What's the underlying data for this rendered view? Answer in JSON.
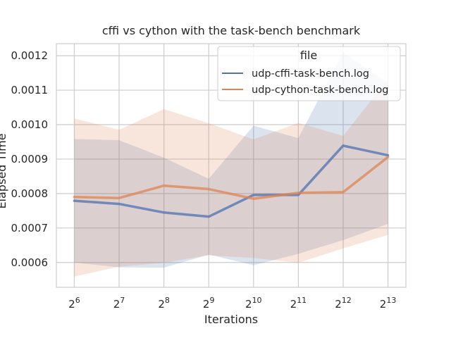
{
  "chart_data": {
    "type": "line",
    "title": "cffi vs cython with the task-bench benchmark",
    "xlabel": "Iterations",
    "ylabel": "Elapsed Time",
    "x_scale": "log2",
    "x": [
      64,
      128,
      256,
      512,
      1024,
      2048,
      4096,
      8192
    ],
    "x_tick_labels": [
      {
        "base": "2",
        "exp": "6"
      },
      {
        "base": "2",
        "exp": "7"
      },
      {
        "base": "2",
        "exp": "8"
      },
      {
        "base": "2",
        "exp": "9"
      },
      {
        "base": "2",
        "exp": "10"
      },
      {
        "base": "2",
        "exp": "11"
      },
      {
        "base": "2",
        "exp": "12"
      },
      {
        "base": "2",
        "exp": "13"
      }
    ],
    "y_ticks": [
      "0.0006",
      "0.0007",
      "0.0008",
      "0.0009",
      "0.0010",
      "0.0011",
      "0.0012"
    ],
    "ylim": [
      0.000528,
      0.001235
    ],
    "grid": true,
    "legend": {
      "title": "file",
      "placement": "top-right"
    },
    "series": [
      {
        "name": "udp-cffi-task-bench.log",
        "color": "#4c72b0",
        "values": [
          0.000779,
          0.00077,
          0.000745,
          0.000733,
          0.000796,
          0.000796,
          0.000939,
          0.000911
        ],
        "ci_low": [
          0.0006,
          0.000586,
          0.000585,
          0.000623,
          0.000592,
          0.000625,
          0.000665,
          0.000712
        ],
        "ci_high": [
          0.000958,
          0.000955,
          0.000904,
          0.000843,
          0.000997,
          0.000961,
          0.00121,
          0.00112
        ]
      },
      {
        "name": "udp-cython-task-bench.log",
        "color": "#dd8452",
        "values": [
          0.00079,
          0.000787,
          0.000823,
          0.000813,
          0.000785,
          0.000802,
          0.000804,
          0.000906
        ],
        "ci_low": [
          0.000559,
          0.000588,
          0.000599,
          0.000621,
          0.000613,
          0.000599,
          0.000641,
          0.00068
        ],
        "ci_high": [
          0.001018,
          0.000985,
          0.001045,
          0.001004,
          0.000957,
          0.001005,
          0.000967,
          0.001133
        ]
      }
    ]
  }
}
